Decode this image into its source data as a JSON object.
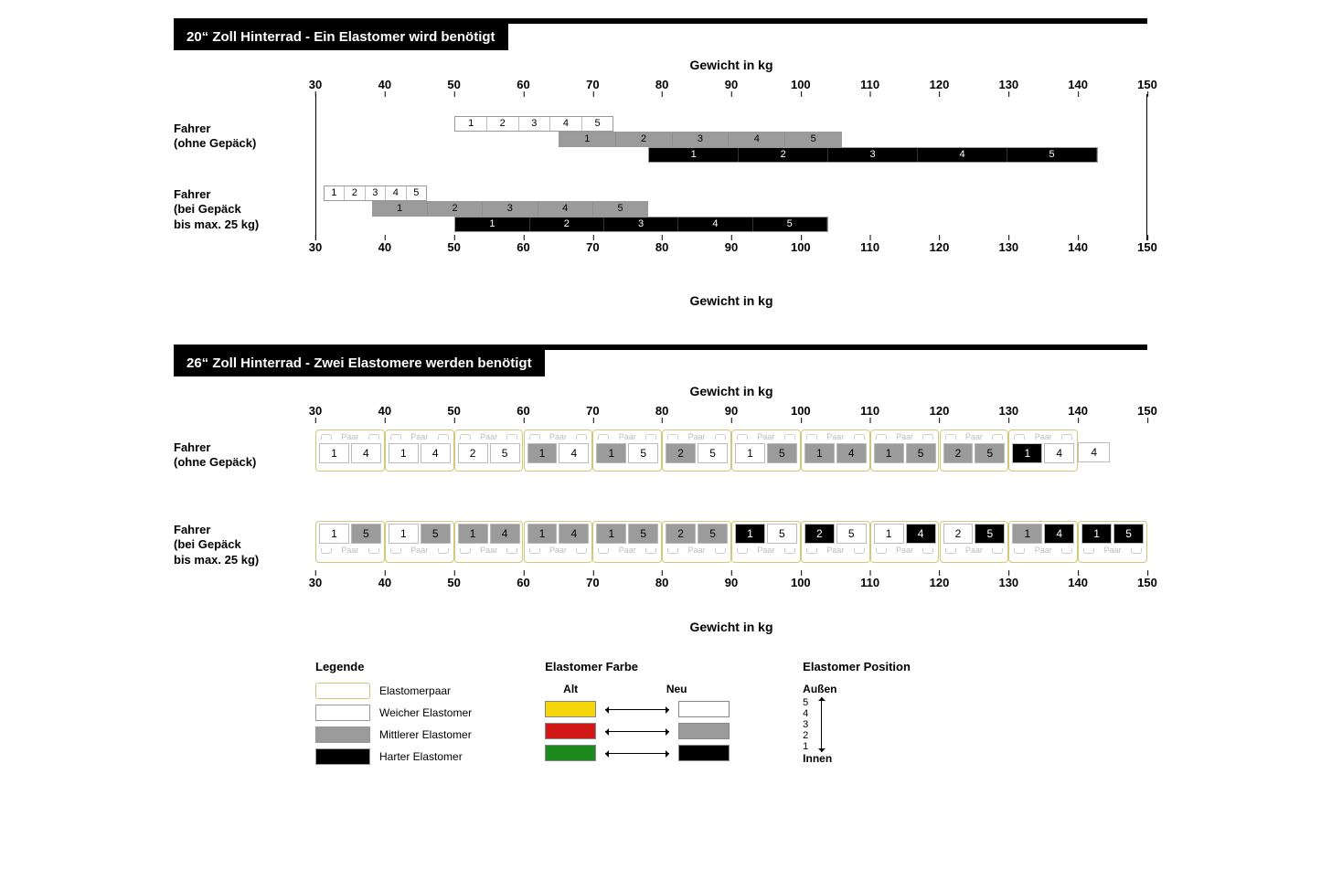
{
  "colors": {
    "soft": "#ffffff",
    "mid": "#9b9b9b",
    "hard": "#000000",
    "old_yellow": "#f4d40a",
    "old_red": "#d01818",
    "old_green": "#1d8a1d",
    "pair_border": "#cfc97a",
    "text": "#000000",
    "background": "#ffffff"
  },
  "axis": {
    "min": 30,
    "max": 150,
    "step": 10,
    "label": "Gewicht in kg"
  },
  "row_labels": {
    "no_luggage_l1": "Fahrer",
    "no_luggage_l2": "(ohne Gepäck)",
    "luggage_l1": "Fahrer",
    "luggage_l2": "(bei Gepäck",
    "luggage_l3": "bis max. 25 kg)"
  },
  "section1": {
    "title": "20“ Zoll Hinterrad - Ein Elastomer wird benötigt",
    "groups": [
      {
        "label": "no_luggage",
        "bars": [
          {
            "type": "soft",
            "start": 50,
            "end": 73,
            "segments": [
              1,
              2,
              3,
              4,
              5
            ]
          },
          {
            "type": "mid",
            "start": 65,
            "end": 106,
            "segments": [
              1,
              2,
              3,
              4,
              5
            ]
          },
          {
            "type": "hard",
            "start": 78,
            "end": 143,
            "segments": [
              1,
              2,
              3,
              4,
              5
            ]
          }
        ]
      },
      {
        "label": "luggage",
        "bars": [
          {
            "type": "soft",
            "start": 31,
            "end": 46,
            "segments": [
              1,
              2,
              3,
              4,
              5
            ]
          },
          {
            "type": "mid",
            "start": 38,
            "end": 78,
            "segments": [
              1,
              2,
              3,
              4,
              5
            ]
          },
          {
            "type": "hard",
            "start": 50,
            "end": 104,
            "segments": [
              1,
              2,
              3,
              4,
              5
            ]
          }
        ]
      }
    ]
  },
  "section2": {
    "title": "26“ Zoll Hinterrad - Zwei Elastomere werden benötigt",
    "pair_label": "Paar",
    "groups": [
      {
        "label": "no_luggage",
        "pair_label_pos": "above",
        "pairs": [
          {
            "a": {
              "n": 1,
              "t": "soft"
            },
            "b": {
              "n": 4,
              "t": "soft"
            }
          },
          {
            "a": {
              "n": 1,
              "t": "soft"
            },
            "b": {
              "n": 4,
              "t": "soft"
            }
          },
          {
            "a": {
              "n": 2,
              "t": "soft"
            },
            "b": {
              "n": 5,
              "t": "soft"
            }
          },
          {
            "a": {
              "n": 1,
              "t": "mid"
            },
            "b": {
              "n": 4,
              "t": "soft"
            }
          },
          {
            "a": {
              "n": 1,
              "t": "mid"
            },
            "b": {
              "n": 5,
              "t": "soft"
            }
          },
          {
            "a": {
              "n": 2,
              "t": "mid"
            },
            "b": {
              "n": 5,
              "t": "soft"
            }
          },
          {
            "a": {
              "n": 1,
              "t": "soft"
            },
            "b": {
              "n": 5,
              "t": "mid"
            }
          },
          {
            "a": {
              "n": 1,
              "t": "mid"
            },
            "b": {
              "n": 4,
              "t": "mid"
            }
          },
          {
            "a": {
              "n": 1,
              "t": "mid"
            },
            "b": {
              "n": 5,
              "t": "mid"
            }
          },
          {
            "a": {
              "n": 2,
              "t": "mid"
            },
            "b": {
              "n": 5,
              "t": "mid"
            }
          },
          {
            "a": {
              "n": 1,
              "t": "hard"
            },
            "b": {
              "n": 4,
              "t": "soft"
            }
          }
        ],
        "tail": {
          "n": 4,
          "t": "soft"
        }
      },
      {
        "label": "luggage",
        "pair_label_pos": "below",
        "pairs": [
          {
            "a": {
              "n": 1,
              "t": "soft"
            },
            "b": {
              "n": 5,
              "t": "mid"
            }
          },
          {
            "a": {
              "n": 1,
              "t": "soft"
            },
            "b": {
              "n": 5,
              "t": "mid"
            }
          },
          {
            "a": {
              "n": 1,
              "t": "mid"
            },
            "b": {
              "n": 4,
              "t": "mid"
            }
          },
          {
            "a": {
              "n": 1,
              "t": "mid"
            },
            "b": {
              "n": 4,
              "t": "mid"
            }
          },
          {
            "a": {
              "n": 1,
              "t": "mid"
            },
            "b": {
              "n": 5,
              "t": "mid"
            }
          },
          {
            "a": {
              "n": 2,
              "t": "mid"
            },
            "b": {
              "n": 5,
              "t": "mid"
            }
          },
          {
            "a": {
              "n": 1,
              "t": "hard"
            },
            "b": {
              "n": 5,
              "t": "soft"
            }
          },
          {
            "a": {
              "n": 2,
              "t": "hard"
            },
            "b": {
              "n": 5,
              "t": "soft"
            }
          },
          {
            "a": {
              "n": 1,
              "t": "soft"
            },
            "b": {
              "n": 4,
              "t": "hard"
            }
          },
          {
            "a": {
              "n": 2,
              "t": "soft"
            },
            "b": {
              "n": 5,
              "t": "hard"
            }
          },
          {
            "a": {
              "n": 1,
              "t": "mid"
            },
            "b": {
              "n": 4,
              "t": "hard"
            }
          },
          {
            "a": {
              "n": 1,
              "t": "hard"
            },
            "b": {
              "n": 5,
              "t": "hard"
            }
          }
        ]
      }
    ]
  },
  "legend": {
    "title": "Legende",
    "pair": "Elastomerpaar",
    "soft": "Weicher Elastomer",
    "mid": "Mittlerer Elastomer",
    "hard": "Harter Elastomer",
    "color_title": "Elastomer Farbe",
    "old_label": "Alt",
    "new_label": "Neu",
    "pos_title": "Elastomer Position",
    "outer": "Außen",
    "inner": "Innen",
    "pos_nums": [
      5,
      4,
      3,
      2,
      1
    ]
  }
}
